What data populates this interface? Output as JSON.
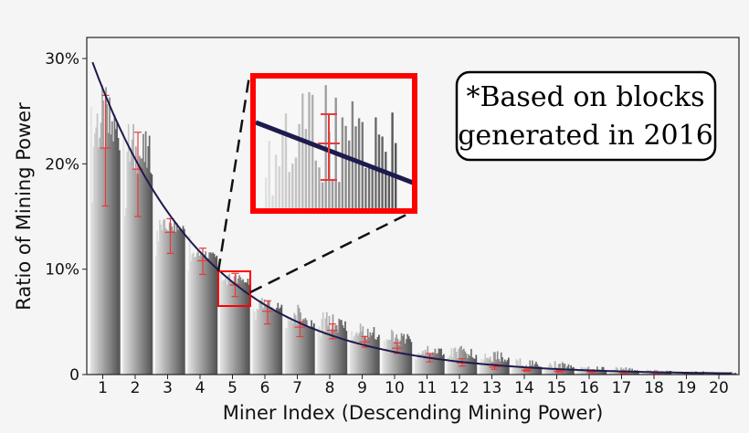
{
  "chart_data": {
    "type": "bar",
    "title": "",
    "xlabel": "Miner Index (Descending Mining Power)",
    "ylabel": "Ratio of Mining Power",
    "categories": [
      "1",
      "2",
      "3",
      "4",
      "5",
      "6",
      "7",
      "8",
      "9",
      "10",
      "11",
      "12",
      "13",
      "14",
      "15",
      "16",
      "17",
      "18",
      "19",
      "20"
    ],
    "ylim": [
      0,
      0.32
    ],
    "yticks": [
      {
        "value": 0,
        "label": "0"
      },
      {
        "value": 0.1,
        "label": "10%"
      },
      {
        "value": 0.2,
        "label": "20%"
      },
      {
        "value": 0.3,
        "label": "30%"
      }
    ],
    "bar_peaks": [
      0.29,
      0.25,
      0.15,
      0.12,
      0.1,
      0.075,
      0.074,
      0.063,
      0.052,
      0.045,
      0.033,
      0.03,
      0.026,
      0.018,
      0.014,
      0.01,
      0.008,
      0.005,
      0.004,
      0.003
    ],
    "bar_means": [
      0.21,
      0.19,
      0.135,
      0.11,
      0.085,
      0.06,
      0.045,
      0.04,
      0.033,
      0.028,
      0.018,
      0.015,
      0.012,
      0.007,
      0.005,
      0.004,
      0.003,
      0.002,
      0.0015,
      0.001
    ],
    "error_bars": [
      {
        "mean": 0.215,
        "low": 0.16,
        "high": 0.265
      },
      {
        "mean": 0.195,
        "low": 0.15,
        "high": 0.23
      },
      {
        "mean": 0.135,
        "low": 0.115,
        "high": 0.148
      },
      {
        "mean": 0.108,
        "low": 0.095,
        "high": 0.12
      },
      {
        "mean": 0.085,
        "low": 0.074,
        "high": 0.096
      },
      {
        "mean": 0.06,
        "low": 0.048,
        "high": 0.07
      },
      {
        "mean": 0.045,
        "low": 0.036,
        "high": 0.05
      },
      {
        "mean": 0.042,
        "low": 0.034,
        "high": 0.048
      },
      {
        "mean": 0.031,
        "low": 0.026,
        "high": 0.036
      },
      {
        "mean": 0.025,
        "low": 0.02,
        "high": 0.03
      },
      {
        "mean": 0.016,
        "low": 0.012,
        "high": 0.02
      },
      {
        "mean": 0.011,
        "low": 0.008,
        "high": 0.015
      },
      {
        "mean": 0.007,
        "low": 0.005,
        "high": 0.01
      },
      {
        "mean": 0.004,
        "low": 0.003,
        "high": 0.005
      },
      {
        "mean": 0.003,
        "low": 0.002,
        "high": 0.004
      },
      {
        "mean": 0.0025,
        "low": 0.0015,
        "high": 0.003
      },
      {
        "mean": 0.002,
        "low": 0.001,
        "high": 0.0025
      },
      {
        "mean": 0.0015,
        "low": 0.001,
        "high": 0.002
      },
      {
        "mean": 0.001,
        "low": 0.0005,
        "high": 0.0015
      },
      {
        "mean": 0.001,
        "low": 0.0005,
        "high": 0.0015
      }
    ],
    "fit_curve": {
      "type": "exponential",
      "a": 0.305,
      "b": 0.282
    },
    "annotation": "*Based on blocks generated in 2016",
    "inset_zoom_miner": 5,
    "grid": false,
    "legend": "none",
    "colors": {
      "bar_light": "#dcdcdc",
      "bar_dark": "#5c5c5c",
      "curve": "#1e1b4f",
      "error_bar": "#e83a3a",
      "highlight": "#ff0000",
      "background": "#f5f5f5"
    }
  }
}
